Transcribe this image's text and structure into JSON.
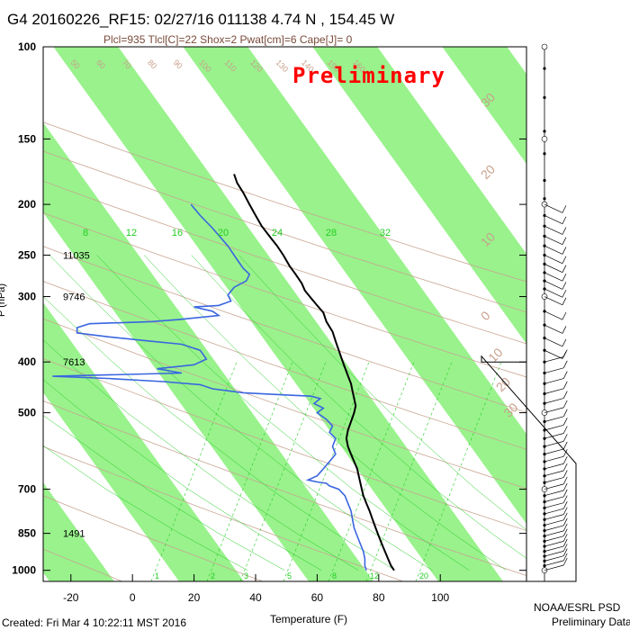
{
  "title": "G4 20160226_RF15: 02/27/16 011138   4.74 N , 154.45 W",
  "subtitle": "Plcl=935 Tlcl[C]=22 Shox=2 Pwat[cm]=6 Cape[J]= 0",
  "watermark": "Preliminary",
  "footer": {
    "created": "Created: Fri Mar  4 10:22:11 MST 2016",
    "agency": "NOAA/ESRL PSD",
    "status": "Preliminary Data"
  },
  "colors": {
    "band": "#99f28c",
    "temperature": "#000000",
    "dewpoint": "#3a66e0",
    "isotherm_label": "#c8a08c",
    "mixing_ratio": "#22cc22",
    "moist_adiabat": "#22cc22",
    "dry_adiabat": "#c8a08c"
  },
  "chart_data": {
    "type": "line",
    "xlabel": "Temperature (F)",
    "ylabel": "P (hPa)",
    "x_ticks": [
      -20,
      0,
      20,
      40,
      60,
      80,
      100
    ],
    "y_ticks": [
      100,
      150,
      200,
      250,
      300,
      400,
      500,
      700,
      850,
      1000
    ],
    "xlim": [
      -29,
      128
    ],
    "ylim": [
      1050,
      100
    ],
    "y_scale": "log",
    "height_labels": [
      {
        "p": 250,
        "text": "11035"
      },
      {
        "p": 300,
        "text": "9746"
      },
      {
        "p": 400,
        "text": "7613"
      },
      {
        "p": 850,
        "text": "1491"
      }
    ],
    "mixing_ratio_labels": [
      "8",
      "12",
      "16",
      "20",
      "24",
      "28",
      "32"
    ],
    "mixing_ratio_bottom_labels": [
      "1",
      "2",
      "3",
      "5",
      "8",
      "12",
      "20"
    ],
    "isotherm_labels_top": [
      "50",
      "60",
      "70",
      "80",
      "90",
      "100",
      "110",
      "120",
      "130",
      "140",
      "150",
      "160"
    ],
    "isotherm_labels_right": [
      "30",
      "20",
      "10",
      "0",
      "10",
      "20",
      "30"
    ],
    "series": [
      {
        "name": "Temperature",
        "points": [
          [
            33,
            175
          ],
          [
            34,
            182
          ],
          [
            36,
            190
          ],
          [
            38,
            200
          ],
          [
            40,
            210
          ],
          [
            42,
            220
          ],
          [
            45,
            232
          ],
          [
            47,
            240
          ],
          [
            49,
            250
          ],
          [
            51,
            262
          ],
          [
            53,
            272
          ],
          [
            55,
            283
          ],
          [
            56,
            292
          ],
          [
            58,
            302
          ],
          [
            60,
            312
          ],
          [
            62,
            322
          ],
          [
            63,
            335
          ],
          [
            65,
            350
          ],
          [
            66,
            365
          ],
          [
            67,
            380
          ],
          [
            68,
            395
          ],
          [
            69,
            410
          ],
          [
            70,
            425
          ],
          [
            71,
            440
          ],
          [
            71.5,
            455
          ],
          [
            72,
            470
          ],
          [
            72.5,
            485
          ],
          [
            72,
            500
          ],
          [
            71,
            520
          ],
          [
            70,
            540
          ],
          [
            69.5,
            560
          ],
          [
            70,
            580
          ],
          [
            71,
            600
          ],
          [
            72,
            620
          ],
          [
            73,
            640
          ],
          [
            73.5,
            660
          ],
          [
            74,
            680
          ],
          [
            74.5,
            700
          ],
          [
            75,
            720
          ],
          [
            76,
            745
          ],
          [
            77,
            770
          ],
          [
            78,
            800
          ],
          [
            79,
            830
          ],
          [
            80,
            860
          ],
          [
            81,
            890
          ],
          [
            82,
            920
          ],
          [
            83,
            950
          ],
          [
            84,
            980
          ],
          [
            85,
            1000
          ]
        ]
      },
      {
        "name": "Dewpoint",
        "points": [
          [
            19,
            200
          ],
          [
            22,
            210
          ],
          [
            26,
            222
          ],
          [
            31,
            240
          ],
          [
            34,
            255
          ],
          [
            36,
            265
          ],
          [
            38,
            272
          ],
          [
            37,
            280
          ],
          [
            33,
            288
          ],
          [
            31,
            298
          ],
          [
            32,
            306
          ],
          [
            28,
            312
          ],
          [
            20,
            314
          ],
          [
            26,
            320
          ],
          [
            28,
            326
          ],
          [
            15,
            332
          ],
          [
            6,
            335
          ],
          [
            -14,
            338
          ],
          [
            -18,
            344
          ],
          [
            -18,
            352
          ],
          [
            -8,
            358
          ],
          [
            4,
            364
          ],
          [
            16,
            370
          ],
          [
            22,
            380
          ],
          [
            24,
            395
          ],
          [
            20,
            405
          ],
          [
            8,
            412
          ],
          [
            16,
            420
          ],
          [
            -26,
            426
          ],
          [
            -8,
            430
          ],
          [
            10,
            436
          ],
          [
            22,
            442
          ],
          [
            26,
            450
          ],
          [
            36,
            458
          ],
          [
            48,
            462
          ],
          [
            58,
            465
          ],
          [
            61,
            470
          ],
          [
            59,
            480
          ],
          [
            62,
            490
          ],
          [
            60,
            500
          ],
          [
            63,
            515
          ],
          [
            65,
            530
          ],
          [
            64,
            545
          ],
          [
            66,
            560
          ],
          [
            65,
            580
          ],
          [
            66,
            600
          ],
          [
            64,
            620
          ],
          [
            62,
            640
          ],
          [
            60,
            660
          ],
          [
            57,
            672
          ],
          [
            60,
            678
          ],
          [
            63,
            682
          ],
          [
            64,
            690
          ],
          [
            67,
            700
          ],
          [
            69,
            720
          ],
          [
            70,
            745
          ],
          [
            71,
            770
          ],
          [
            71.5,
            800
          ],
          [
            72,
            830
          ],
          [
            73,
            860
          ],
          [
            74,
            890
          ],
          [
            75,
            920
          ],
          [
            75.5,
            950
          ],
          [
            75.5,
            980
          ],
          [
            76,
            1000
          ]
        ]
      }
    ],
    "wind_levels": [
      100,
      110,
      125,
      145,
      150,
      160,
      180,
      195,
      200,
      210,
      220,
      230,
      240,
      250,
      260,
      270,
      280,
      290,
      300,
      320,
      340,
      360,
      380,
      400,
      420,
      440,
      460,
      480,
      500,
      520,
      540,
      560,
      580,
      600,
      620,
      640,
      660,
      680,
      700,
      720,
      740,
      760,
      780,
      800,
      820,
      840,
      860,
      880,
      900,
      920,
      940,
      960,
      980,
      1000
    ]
  }
}
